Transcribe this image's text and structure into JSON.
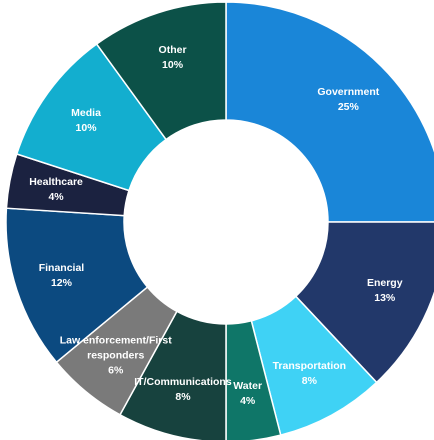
{
  "chart_data": {
    "type": "pie",
    "title": "",
    "slices": [
      {
        "label_lines": [
          "Government"
        ],
        "percent_label": "25%",
        "value": 25,
        "color": "#1a86d8"
      },
      {
        "label_lines": [
          "Energy"
        ],
        "percent_label": "13%",
        "value": 13,
        "color": "#22386a"
      },
      {
        "label_lines": [
          "Transportation"
        ],
        "percent_label": "8%",
        "value": 8,
        "color": "#3fd2f5"
      },
      {
        "label_lines": [
          "Water"
        ],
        "percent_label": "4%",
        "value": 4,
        "color": "#0f7668"
      },
      {
        "label_lines": [
          "IT/Communications"
        ],
        "percent_label": "8%",
        "value": 8,
        "color": "#17423e"
      },
      {
        "label_lines": [
          "Law enforcement/First",
          "responders"
        ],
        "percent_label": "6%",
        "value": 6,
        "color": "#7a7a7a"
      },
      {
        "label_lines": [
          "Financial"
        ],
        "percent_label": "12%",
        "value": 12,
        "color": "#0c4a80"
      },
      {
        "label_lines": [
          "Healthcare"
        ],
        "percent_label": "4%",
        "value": 4,
        "color": "#1b2240"
      },
      {
        "label_lines": [
          "Media"
        ],
        "percent_label": "10%",
        "value": 10,
        "color": "#13aecf"
      },
      {
        "label_lines": [
          "Other"
        ],
        "percent_label": "10%",
        "value": 10,
        "color": "#0c5148"
      }
    ],
    "donut": true,
    "start_angle": "12 o'clock",
    "direction": "clockwise",
    "legend": "none",
    "grid": false
  }
}
